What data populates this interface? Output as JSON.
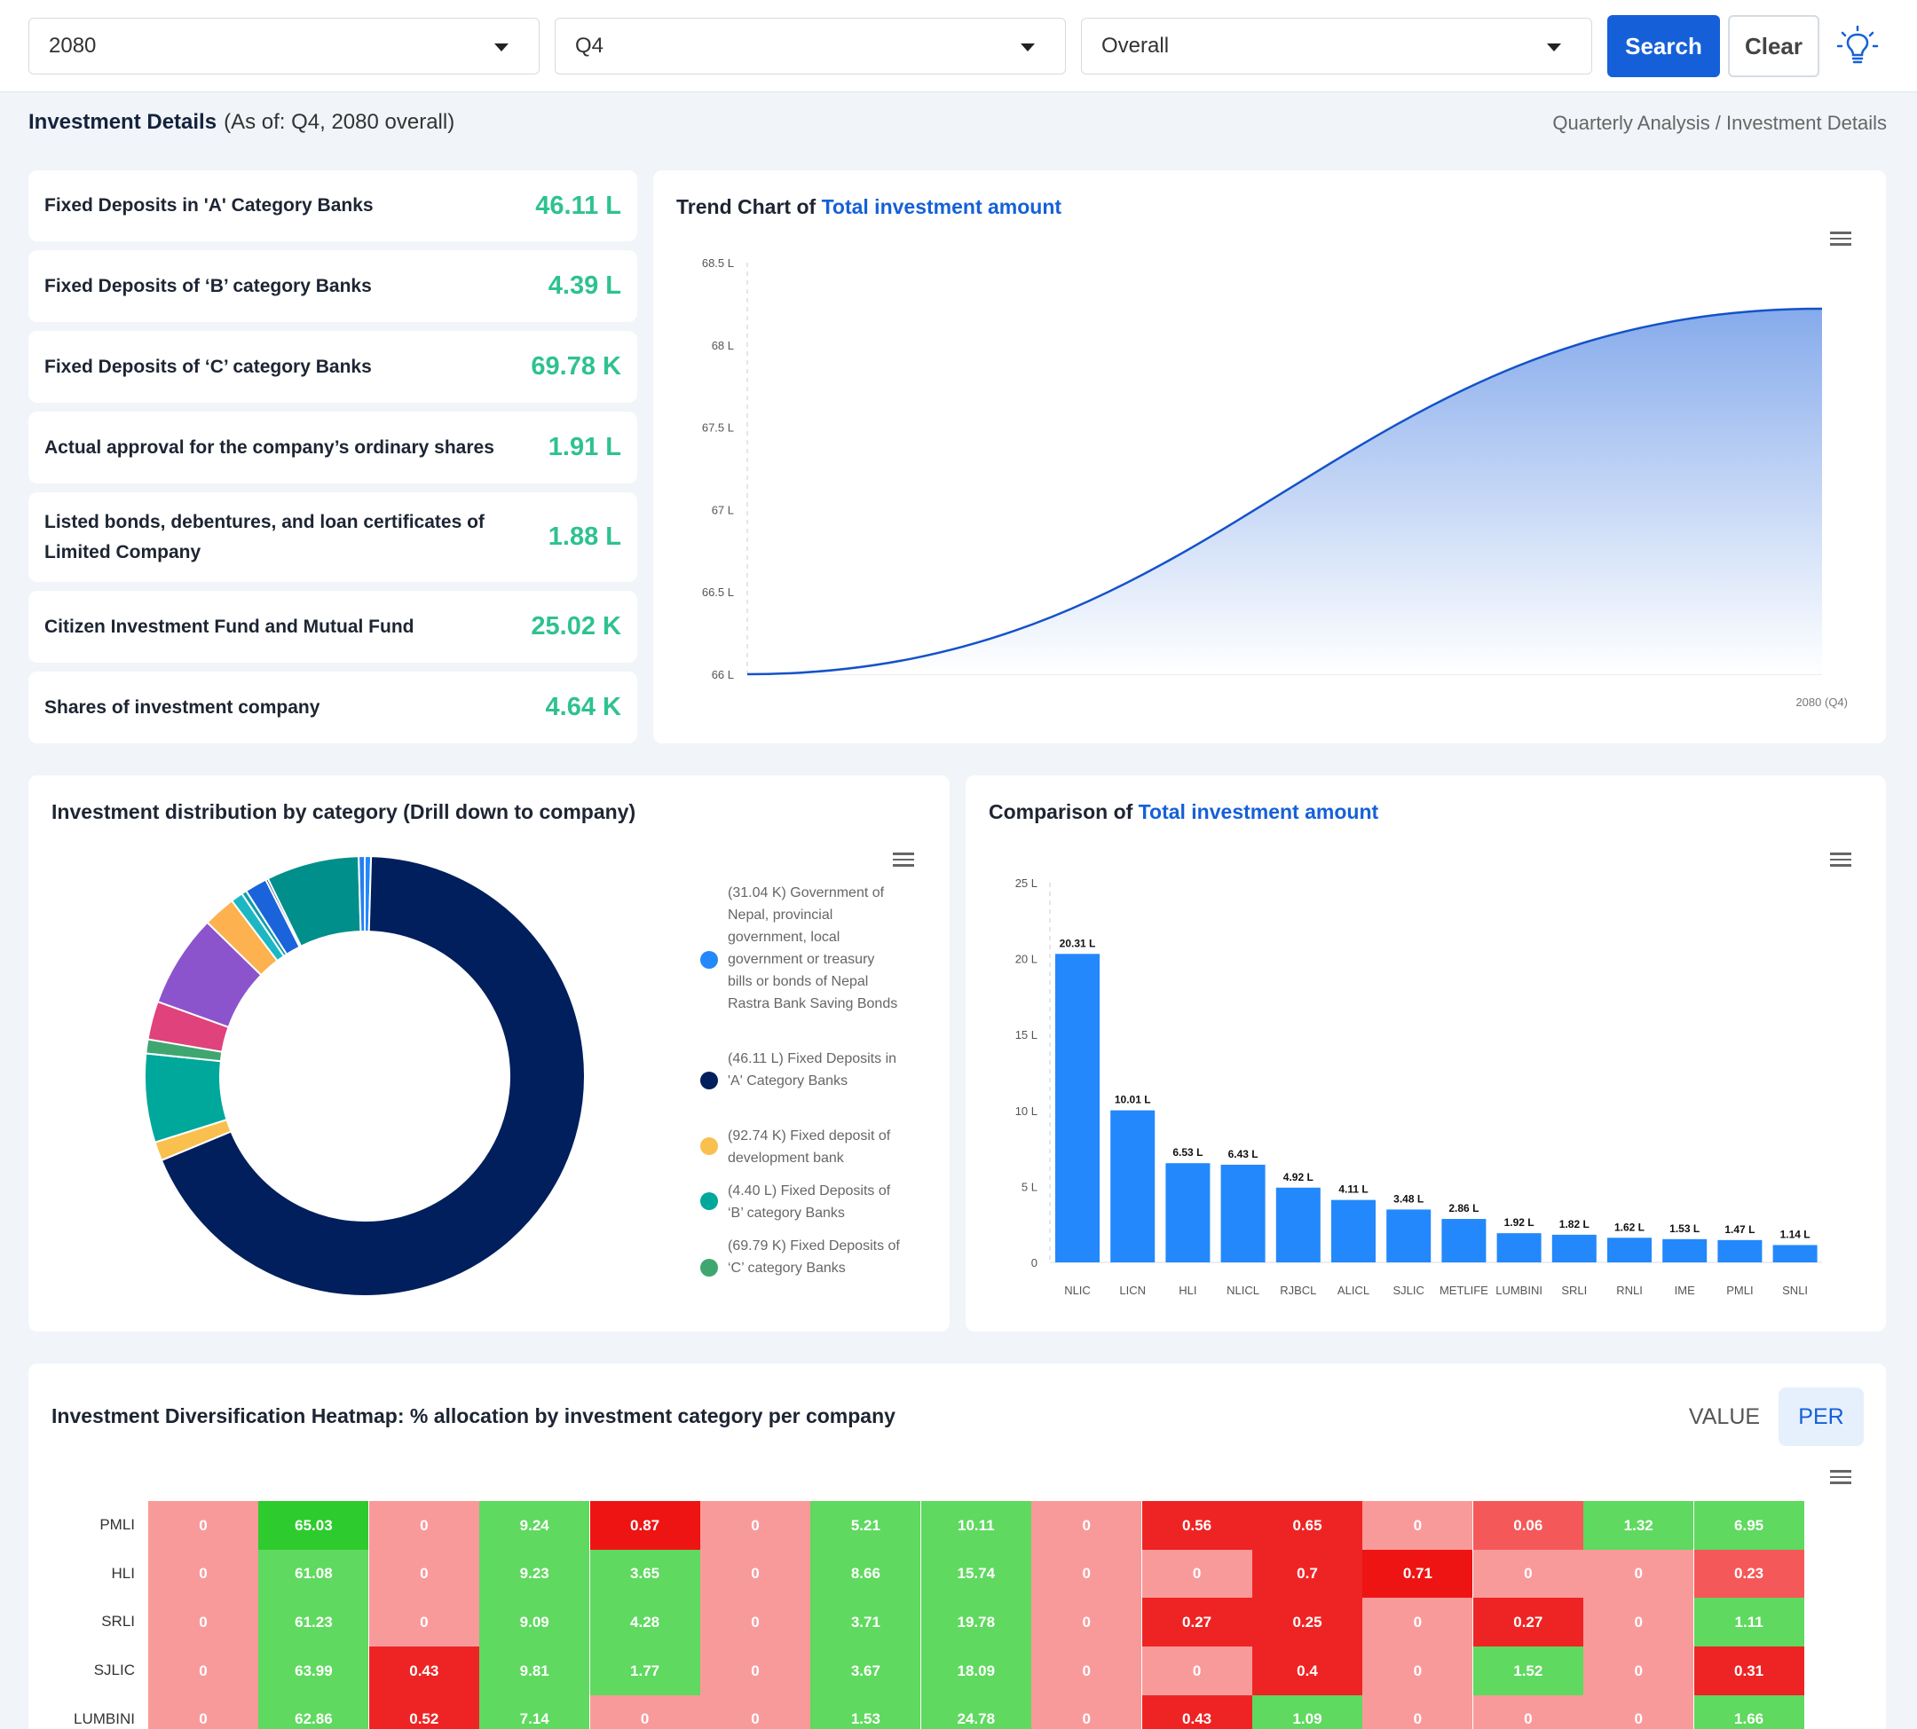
{
  "filters": {
    "year": "2080",
    "quarter": "Q4",
    "scope": "Overall",
    "search_label": "Search",
    "clear_label": "Clear"
  },
  "header": {
    "title": "Investment Details",
    "subtitle": "(As of: Q4, 2080 overall)",
    "breadcrumb": "Quarterly Analysis / Investment Details"
  },
  "kpis": [
    {
      "label": "Fixed Deposits in 'A' Category Banks",
      "value": "46.11 L"
    },
    {
      "label": "Fixed Deposits of ‘B’ category Banks",
      "value": "4.39 L"
    },
    {
      "label": "Fixed Deposits of ‘C’ category Banks",
      "value": "69.78 K"
    },
    {
      "label": "Actual approval for the company’s ordinary shares",
      "value": "1.91 L"
    },
    {
      "label": "Listed bonds, debentures, and loan certificates of Limited Company",
      "value": "1.88 L"
    },
    {
      "label": "Citizen Investment Fund and Mutual Fund",
      "value": "25.02 K"
    },
    {
      "label": "Shares of investment company",
      "value": "4.64 K"
    }
  ],
  "colors": {
    "primary": "#1560d8",
    "kpi_value": "#2ec28f",
    "bar": "#2388fb",
    "donut": [
      "#2388fb",
      "#001f5c",
      "#f9c04f",
      "#00a79b",
      "#3fa670",
      "#e0427c",
      "#8c54cc",
      "#fdb14f",
      "#1db7c4",
      "#0f9fa8",
      "#1a63db",
      "#0b2f6e",
      "#008f8a",
      "#2480f0"
    ]
  },
  "chart_data": [
    {
      "type": "area",
      "title_prefix": "Trend Chart of ",
      "title_highlight": "Total investment amount",
      "y_ticks": [
        "68.5 L",
        "68 L",
        "67.5 L",
        "67 L",
        "66.5 L",
        "66 L"
      ],
      "ylim": [
        66,
        68.5
      ],
      "x_tick_label": "2080 (Q4)",
      "series": [
        {
          "name": "Total investment amount",
          "x": [
            0,
            1
          ],
          "values": [
            66.0,
            68.22
          ]
        }
      ]
    },
    {
      "type": "pie",
      "title": "Investment distribution by category (Drill down to company)",
      "legend": [
        {
          "label": "(31.04 K) Government of Nepal, provincial government, local government or treasury bills or bonds of Nepal Rastra Bank Saving Bonds",
          "color": "#2388fb"
        },
        {
          "label": "(46.11 L) Fixed Deposits in 'A' Category Banks",
          "color": "#001f5c"
        },
        {
          "label": "(92.74 K) Fixed deposit of development bank",
          "color": "#f9c04f"
        },
        {
          "label": "(4.40 L) Fixed Deposits of ‘B’ category Banks",
          "color": "#00a79b"
        },
        {
          "label": "(69.79 K) Fixed Deposits of ‘C’ category Banks",
          "color": "#3fa670"
        }
      ],
      "slices_lakh": [
        0.31,
        46.11,
        0.93,
        4.4,
        0.7,
        1.9,
        4.6,
        1.6,
        0.6,
        0.25,
        1.1,
        0.12,
        4.6,
        0.3
      ]
    },
    {
      "type": "bar",
      "title_prefix": "Comparison of ",
      "title_highlight": "Total investment amount",
      "categories": [
        "NLIC",
        "LICN",
        "HLI",
        "NLICL",
        "RJBCL",
        "ALICL",
        "SJLIC",
        "METLIFE",
        "LUMBINI",
        "SRLI",
        "RNLI",
        "IME",
        "PMLI",
        "SNLI"
      ],
      "values": [
        20.31,
        10.01,
        6.53,
        6.43,
        4.92,
        4.11,
        3.48,
        2.86,
        1.92,
        1.82,
        1.62,
        1.53,
        1.47,
        1.14
      ],
      "value_labels": [
        "20.31 L",
        "10.01 L",
        "6.53 L",
        "6.43 L",
        "4.92 L",
        "4.11 L",
        "3.48 L",
        "2.86 L",
        "1.92 L",
        "1.82 L",
        "1.62 L",
        "1.53 L",
        "1.47 L",
        "1.14 L"
      ],
      "y_ticks": [
        "25 L",
        "20 L",
        "15 L",
        "10 L",
        "5 L",
        "0"
      ],
      "ylim": [
        0,
        25
      ]
    },
    {
      "type": "heatmap",
      "title": "Investment Diversification Heatmap: % allocation by investment category per company",
      "toggle": [
        "VALUE",
        "PER"
      ],
      "rows": [
        "PMLI",
        "HLI",
        "SRLI",
        "SJLIC",
        "LUMBINI"
      ],
      "values": [
        [
          "0",
          "65.03",
          "0",
          "9.24",
          "0.87",
          "0",
          "5.21",
          "10.11",
          "0",
          "0.56",
          "0.65",
          "0",
          "0.06",
          "1.32",
          "6.95"
        ],
        [
          "0",
          "61.08",
          "0",
          "9.23",
          "3.65",
          "0",
          "8.66",
          "15.74",
          "0",
          "0",
          "0.7",
          "0.71",
          "0",
          "0",
          "0.23"
        ],
        [
          "0",
          "61.23",
          "0",
          "9.09",
          "4.28",
          "0",
          "3.71",
          "19.78",
          "0",
          "0.27",
          "0.25",
          "0",
          "0.27",
          "0",
          "1.11"
        ],
        [
          "0",
          "63.99",
          "0.43",
          "9.81",
          "1.77",
          "0",
          "3.67",
          "18.09",
          "0",
          "0",
          "0.4",
          "0",
          "1.52",
          "0",
          "0.31"
        ],
        [
          "0",
          "62.86",
          "0.52",
          "7.14",
          "0",
          "0",
          "1.53",
          "24.78",
          "0",
          "0.43",
          "1.09",
          "0",
          "0",
          "0",
          "1.66"
        ]
      ],
      "colors": [
        [
          "#f99a9a",
          "#2ecb2e",
          "#f99a9a",
          "#5fd95f",
          "#ee1414",
          "#f99a9a",
          "#5fd95f",
          "#5fd95f",
          "#f99a9a",
          "#ee2424",
          "#ee2424",
          "#f99a9a",
          "#f55858",
          "#5fd95f",
          "#5fd95f"
        ],
        [
          "#f99a9a",
          "#5fd95f",
          "#f99a9a",
          "#5fd95f",
          "#5fd95f",
          "#f99a9a",
          "#5fd95f",
          "#5fd95f",
          "#f99a9a",
          "#f99a9a",
          "#ee2424",
          "#ee1414",
          "#f99a9a",
          "#f99a9a",
          "#f55858"
        ],
        [
          "#f99a9a",
          "#5fd95f",
          "#f99a9a",
          "#5fd95f",
          "#5fd95f",
          "#f99a9a",
          "#5fd95f",
          "#5fd95f",
          "#f99a9a",
          "#ee2424",
          "#ee2424",
          "#f99a9a",
          "#ee2424",
          "#f99a9a",
          "#5fd95f"
        ],
        [
          "#f99a9a",
          "#5fd95f",
          "#ee2424",
          "#5fd95f",
          "#5fd95f",
          "#f99a9a",
          "#5fd95f",
          "#5fd95f",
          "#f99a9a",
          "#f99a9a",
          "#ee2424",
          "#f99a9a",
          "#5fd95f",
          "#f99a9a",
          "#ee2424"
        ],
        [
          "#f99a9a",
          "#5fd95f",
          "#ee2424",
          "#5fd95f",
          "#f99a9a",
          "#f99a9a",
          "#5fd95f",
          "#5fd95f",
          "#f99a9a",
          "#ee2424",
          "#5fd95f",
          "#f99a9a",
          "#f99a9a",
          "#f99a9a",
          "#5fd95f"
        ]
      ]
    }
  ]
}
